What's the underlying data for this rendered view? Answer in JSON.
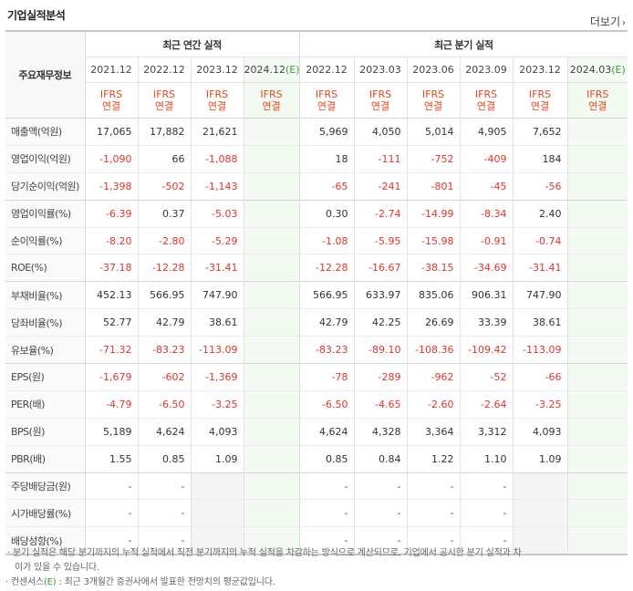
{
  "section_title": "기업실적분석",
  "more_label": "더보기",
  "more_arrow": "›",
  "row_header": "주요재무정보",
  "annual_group": "최근 연간 실적",
  "quarter_group": "최근 분기 실적",
  "annual_periods": [
    "2021.12",
    "2022.12",
    "2023.12",
    "2024.12"
  ],
  "quarter_periods": [
    "2022.12",
    "2023.03",
    "2023.06",
    "2023.09",
    "2023.12",
    "2024.03"
  ],
  "estimate_mark": "(E)",
  "ifrs_line1": "IFRS",
  "ifrs_line2": "연결",
  "rows": [
    {
      "label": "매출액(억원)",
      "annual": [
        "17,065",
        "17,882",
        "21,621",
        ""
      ],
      "quarter": [
        "5,969",
        "4,050",
        "5,014",
        "4,905",
        "7,652",
        ""
      ]
    },
    {
      "label": "영업이익(억원)",
      "annual": [
        "-1,090",
        "66",
        "-1,088",
        ""
      ],
      "quarter": [
        "18",
        "-111",
        "-752",
        "-409",
        "184",
        ""
      ]
    },
    {
      "label": "당기순이익(억원)",
      "annual": [
        "-1,398",
        "-502",
        "-1,143",
        ""
      ],
      "quarter": [
        "-65",
        "-241",
        "-801",
        "-45",
        "-56",
        ""
      ]
    },
    {
      "label": "영업이익률(%)",
      "annual": [
        "-6.39",
        "0.37",
        "-5.03",
        ""
      ],
      "quarter": [
        "0.30",
        "-2.74",
        "-14.99",
        "-8.34",
        "2.40",
        ""
      ]
    },
    {
      "label": "순이익률(%)",
      "annual": [
        "-8.20",
        "-2.80",
        "-5.29",
        ""
      ],
      "quarter": [
        "-1.08",
        "-5.95",
        "-15.98",
        "-0.91",
        "-0.74",
        ""
      ]
    },
    {
      "label": "ROE(%)",
      "annual": [
        "-37.18",
        "-12.28",
        "-31.41",
        ""
      ],
      "quarter": [
        "-12.28",
        "-16.67",
        "-38.15",
        "-34.69",
        "-31.41",
        ""
      ]
    },
    {
      "label": "부채비율(%)",
      "annual": [
        "452.13",
        "566.95",
        "747.90",
        ""
      ],
      "quarter": [
        "566.95",
        "633.97",
        "835.06",
        "906.31",
        "747.90",
        ""
      ]
    },
    {
      "label": "당좌비율(%)",
      "annual": [
        "52.77",
        "42.79",
        "38.61",
        ""
      ],
      "quarter": [
        "42.79",
        "42.25",
        "26.69",
        "33.39",
        "38.61",
        ""
      ]
    },
    {
      "label": "유보율(%)",
      "annual": [
        "-71.32",
        "-83.23",
        "-113.09",
        ""
      ],
      "quarter": [
        "-83.23",
        "-89.10",
        "-108.36",
        "-109.42",
        "-113.09",
        ""
      ]
    },
    {
      "label": "EPS(원)",
      "annual": [
        "-1,679",
        "-602",
        "-1,369",
        ""
      ],
      "quarter": [
        "-78",
        "-289",
        "-962",
        "-52",
        "-66",
        ""
      ]
    },
    {
      "label": "PER(배)",
      "annual": [
        "-4.79",
        "-6.50",
        "-3.25",
        ""
      ],
      "quarter": [
        "-6.50",
        "-4.65",
        "-2.60",
        "-2.64",
        "-3.25",
        ""
      ]
    },
    {
      "label": "BPS(원)",
      "annual": [
        "5,189",
        "4,624",
        "4,093",
        ""
      ],
      "quarter": [
        "4,624",
        "4,328",
        "3,364",
        "3,312",
        "4,093",
        ""
      ]
    },
    {
      "label": "PBR(배)",
      "annual": [
        "1.55",
        "0.85",
        "1.09",
        ""
      ],
      "quarter": [
        "0.85",
        "0.84",
        "1.22",
        "1.10",
        "1.09",
        ""
      ]
    },
    {
      "label": "주당배당금(원)",
      "annual": [
        "-",
        "-",
        "",
        ""
      ],
      "quarter": [
        "-",
        "-",
        "-",
        "-",
        "",
        ""
      ]
    },
    {
      "label": "시가배당률(%)",
      "annual": [
        "-",
        "-",
        "",
        ""
      ],
      "quarter": [
        "-",
        "-",
        "-",
        "-",
        "",
        ""
      ]
    },
    {
      "label": "배당성향(%)",
      "annual": [
        "-",
        "-",
        "",
        ""
      ],
      "quarter": [
        "-",
        "-",
        "-",
        "-",
        "",
        ""
      ]
    }
  ],
  "notes": {
    "bullet": "·",
    "line1": "분기 실적은 해당 분기까지의 누적 실적에서 직전 분기까지의 누적 실적을 차감하는 방식으로 계산되므로, 기업에서 공시한 분기 실적과 차이가 있을 수 있습니다.",
    "line2_pre": "컨센서스",
    "line2_mark": "(E)",
    "line2_post": ": 최근 3개월간 증권사에서 발표한 전망치의 평균값입니다."
  },
  "colors": {
    "negative": "#e4342b",
    "ifrs": "#e8461c",
    "estimate": "#3e9b3a",
    "estimate_bg": "#f3faf2"
  }
}
